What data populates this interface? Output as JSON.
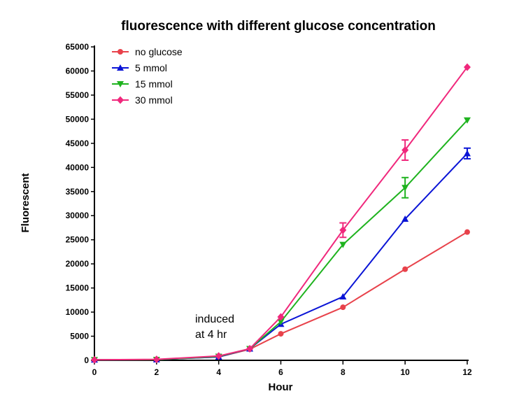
{
  "chart_data": {
    "type": "line",
    "title": "fluorescence with different glucose concentration",
    "xlabel": "Hour",
    "ylabel": "Fluorescent",
    "xlim": [
      0,
      12
    ],
    "ylim": [
      0,
      65000
    ],
    "x_ticks": [
      0,
      2,
      4,
      6,
      8,
      10,
      12
    ],
    "y_ticks": [
      0,
      5000,
      10000,
      15000,
      20000,
      25000,
      30000,
      35000,
      40000,
      45000,
      50000,
      55000,
      60000,
      65000
    ],
    "grid": false,
    "legend_position": "top-left",
    "annotation": {
      "lines": [
        "induced",
        "at 4 hr"
      ],
      "x": 3.6,
      "y": 8000
    },
    "series": [
      {
        "name": "no glucose",
        "color": "#e8424b",
        "marker": "circle",
        "x": [
          0,
          2,
          4,
          5,
          6,
          8,
          10,
          12
        ],
        "y": [
          100,
          150,
          700,
          2300,
          5500,
          11000,
          18900,
          26600
        ],
        "err": [
          0,
          0,
          0,
          0,
          0,
          0,
          0,
          0
        ]
      },
      {
        "name": "5 mmol",
        "color": "#0a14d6",
        "marker": "triangle-up",
        "x": [
          0,
          2,
          4,
          5,
          6,
          8,
          10,
          12
        ],
        "y": [
          100,
          150,
          700,
          2400,
          7500,
          13200,
          29300,
          42900
        ],
        "err": [
          0,
          0,
          0,
          0,
          0,
          0,
          0,
          1100
        ]
      },
      {
        "name": "15 mmol",
        "color": "#1fb31f",
        "marker": "triangle-down",
        "x": [
          0,
          2,
          4,
          5,
          6,
          8,
          10,
          12
        ],
        "y": [
          100,
          150,
          800,
          2400,
          8000,
          24000,
          35800,
          49800
        ],
        "err": [
          0,
          0,
          0,
          0,
          0,
          0,
          2100,
          0
        ]
      },
      {
        "name": "30 mmol",
        "color": "#f0287c",
        "marker": "diamond",
        "x": [
          0,
          2,
          4,
          5,
          6,
          8,
          10,
          12
        ],
        "y": [
          100,
          200,
          900,
          2400,
          9000,
          27000,
          43600,
          60800
        ],
        "err": [
          0,
          0,
          0,
          0,
          0,
          1500,
          2100,
          0
        ]
      }
    ]
  }
}
